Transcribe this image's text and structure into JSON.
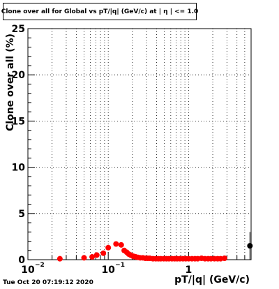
{
  "chart_data": {
    "type": "scatter",
    "title": "Clone  over all for Global vs pT/|q| (GeV/c) at |  η | <= 1.0",
    "xlabel": "pT/|q| (GeV/c)",
    "ylabel": "Clone  over all (%)",
    "xscale": "log",
    "xlim": [
      0.01,
      6.0
    ],
    "ylim": [
      0,
      25
    ],
    "grid": true,
    "yticks": [
      0,
      5,
      10,
      15,
      20,
      25
    ],
    "ytick_labels": [
      "0",
      "5",
      "10",
      "15",
      "20",
      "25"
    ],
    "xticks": [
      0.01,
      0.1,
      1
    ],
    "xtick_labels": [
      "10",
      "10",
      "1"
    ],
    "xtick_exponents": [
      "−2",
      "−1",
      ""
    ],
    "series": [
      {
        "color": "#ff0000",
        "x": [
          0.025,
          0.05,
          0.063,
          0.072,
          0.087,
          0.1,
          0.125,
          0.145,
          0.158,
          0.17,
          0.18,
          0.19,
          0.2,
          0.21,
          0.22,
          0.235,
          0.25,
          0.27,
          0.29,
          0.31,
          0.33,
          0.36,
          0.39,
          0.42,
          0.45,
          0.49,
          0.53,
          0.57,
          0.62,
          0.67,
          0.72,
          0.78,
          0.85,
          0.92,
          1.0,
          1.1,
          1.2,
          1.3,
          1.45,
          1.6,
          1.75,
          1.9,
          2.1,
          2.3,
          2.5,
          2.8
        ],
        "y": [
          0.1,
          0.2,
          0.3,
          0.5,
          0.7,
          1.3,
          1.7,
          1.6,
          1.0,
          0.8,
          0.6,
          0.5,
          0.4,
          0.35,
          0.3,
          0.25,
          0.2,
          0.2,
          0.15,
          0.15,
          0.15,
          0.1,
          0.1,
          0.1,
          0.1,
          0.1,
          0.1,
          0.1,
          0.1,
          0.1,
          0.1,
          0.1,
          0.1,
          0.1,
          0.1,
          0.1,
          0.1,
          0.1,
          0.15,
          0.1,
          0.1,
          0.1,
          0.1,
          0.1,
          0.1,
          0.15
        ]
      },
      {
        "color": "#000000",
        "x": [
          5.8
        ],
        "y": [
          1.5
        ],
        "yerr": [
          1.5
        ]
      }
    ]
  },
  "footer_text": "Tue Oct 20 07:19:12 2020"
}
